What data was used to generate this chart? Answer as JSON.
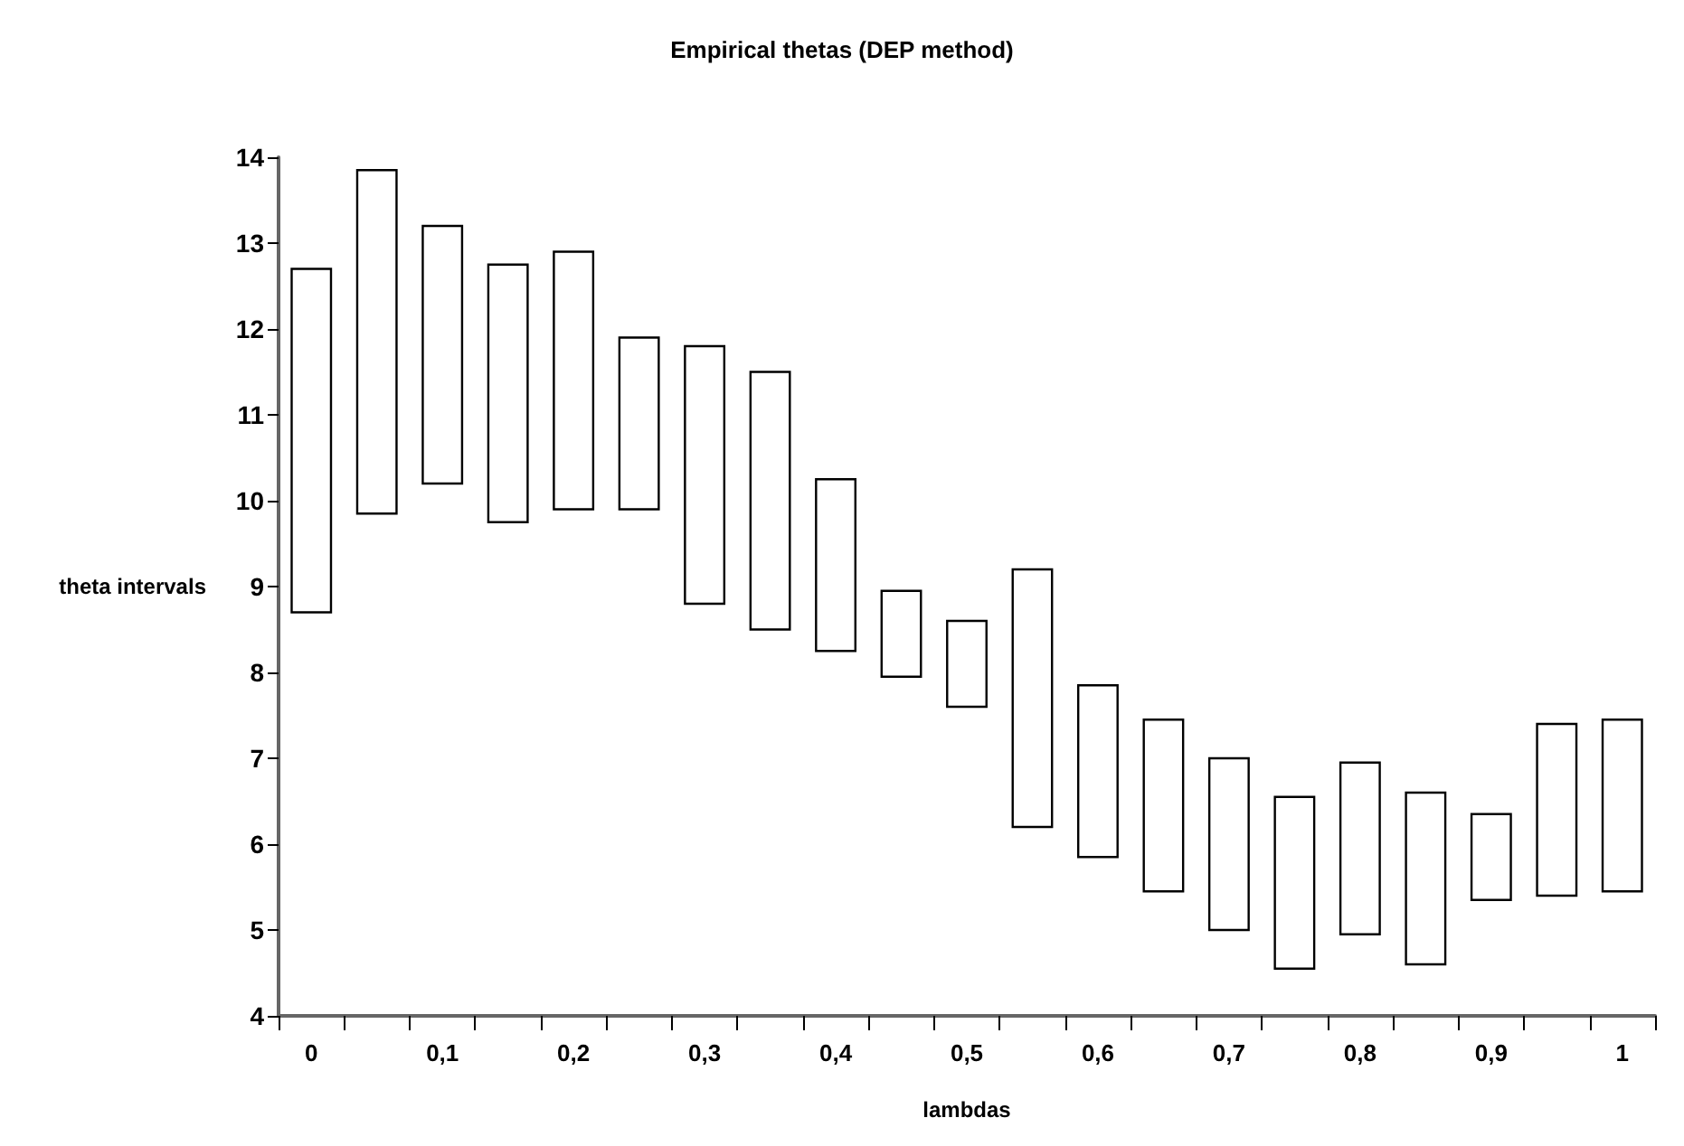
{
  "chart_data": {
    "type": "bar",
    "title": "Empirical thetas (DEP method)",
    "xlabel": "lambdas",
    "ylabel": "theta intervals",
    "categories": [
      "0",
      null,
      "0,1",
      null,
      "0,2",
      null,
      "0,3",
      null,
      "0,4",
      null,
      "0,5",
      null,
      "0,6",
      null,
      "0,7",
      null,
      "0,8",
      null,
      "0,9",
      null,
      "1"
    ],
    "base": [
      8.7,
      9.85,
      10.2,
      9.75,
      9.9,
      9.9,
      8.8,
      8.5,
      8.25,
      7.95,
      7.6,
      6.2,
      5.85,
      5.45,
      5,
      4.55,
      4.95,
      4.6,
      5.35,
      5.4,
      5.45
    ],
    "values": [
      4,
      4,
      3,
      3,
      3,
      2,
      3,
      3,
      2,
      1,
      1,
      3,
      2,
      2,
      2,
      2,
      2,
      2,
      1,
      2,
      2
    ],
    "color": "#ffffff",
    "ylim": [
      4,
      14
    ],
    "yticks": [
      4,
      5,
      6,
      7,
      8,
      9,
      10,
      11,
      12,
      13,
      14
    ],
    "grid": false
  }
}
